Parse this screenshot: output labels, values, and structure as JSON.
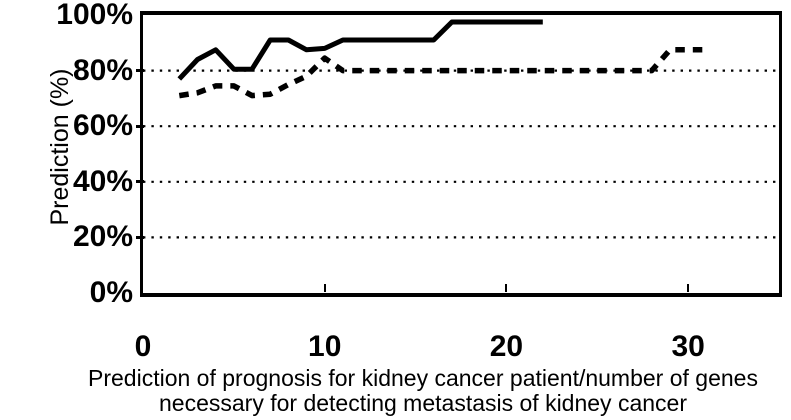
{
  "figure": {
    "y_axis_title": "Prediction (%)",
    "caption_line1": "Prediction of prognosis for kidney cancer patient/number of genes",
    "caption_line2": "necessary for detecting metastasis of kidney cancer"
  },
  "chart_data": {
    "type": "line",
    "title": "",
    "xlabel": "Prediction of prognosis for kidney cancer patient/number of genes necessary for detecting metastasis of kidney cancer",
    "ylabel": "Prediction (%)",
    "xlim": [
      0,
      35
    ],
    "ylim": [
      0,
      100
    ],
    "x_ticks": [
      0,
      10,
      20,
      30
    ],
    "x_tick_labels": [
      "0",
      "10",
      "20",
      "30"
    ],
    "y_ticks": [
      0,
      20,
      40,
      60,
      80,
      100
    ],
    "y_tick_labels": [
      "0%",
      "20%",
      "40%",
      "60%",
      "80%",
      "100%"
    ],
    "grid": "horizontal-dotted",
    "legend": "none",
    "colors": {
      "line": "#000000",
      "background": "#ffffff"
    },
    "series": [
      {
        "name": "solid-line",
        "style": "solid",
        "points": [
          [
            2,
            77
          ],
          [
            3,
            84
          ],
          [
            4,
            87.5
          ],
          [
            5,
            80.5
          ],
          [
            6,
            80.5
          ],
          [
            7,
            91
          ],
          [
            8,
            91
          ],
          [
            9,
            87.5
          ],
          [
            10,
            88
          ],
          [
            11,
            91
          ],
          [
            12,
            91
          ],
          [
            13,
            91
          ],
          [
            14,
            91
          ],
          [
            15,
            91
          ],
          [
            16,
            91
          ],
          [
            17,
            97.5
          ],
          [
            18,
            97.5
          ],
          [
            19,
            97.5
          ],
          [
            20,
            97.5
          ],
          [
            21,
            97.5
          ],
          [
            22,
            97.5
          ]
        ]
      },
      {
        "name": "dashed-line",
        "style": "dashed",
        "points": [
          [
            2,
            71
          ],
          [
            3,
            72
          ],
          [
            4,
            74.5
          ],
          [
            5,
            74.5
          ],
          [
            6,
            71
          ],
          [
            7,
            71.5
          ],
          [
            8,
            75
          ],
          [
            9,
            78
          ],
          [
            10,
            84.5
          ],
          [
            11,
            80
          ],
          [
            12,
            80
          ],
          [
            13,
            80
          ],
          [
            14,
            80
          ],
          [
            15,
            80
          ],
          [
            16,
            80
          ],
          [
            17,
            80
          ],
          [
            18,
            80
          ],
          [
            19,
            80
          ],
          [
            20,
            80
          ],
          [
            21,
            80
          ],
          [
            22,
            80
          ],
          [
            23,
            80
          ],
          [
            24,
            80
          ],
          [
            25,
            80
          ],
          [
            26,
            80
          ],
          [
            27,
            80
          ],
          [
            28,
            80
          ],
          [
            29,
            87.5
          ],
          [
            30,
            87.5
          ],
          [
            31,
            87.5
          ]
        ]
      }
    ]
  }
}
